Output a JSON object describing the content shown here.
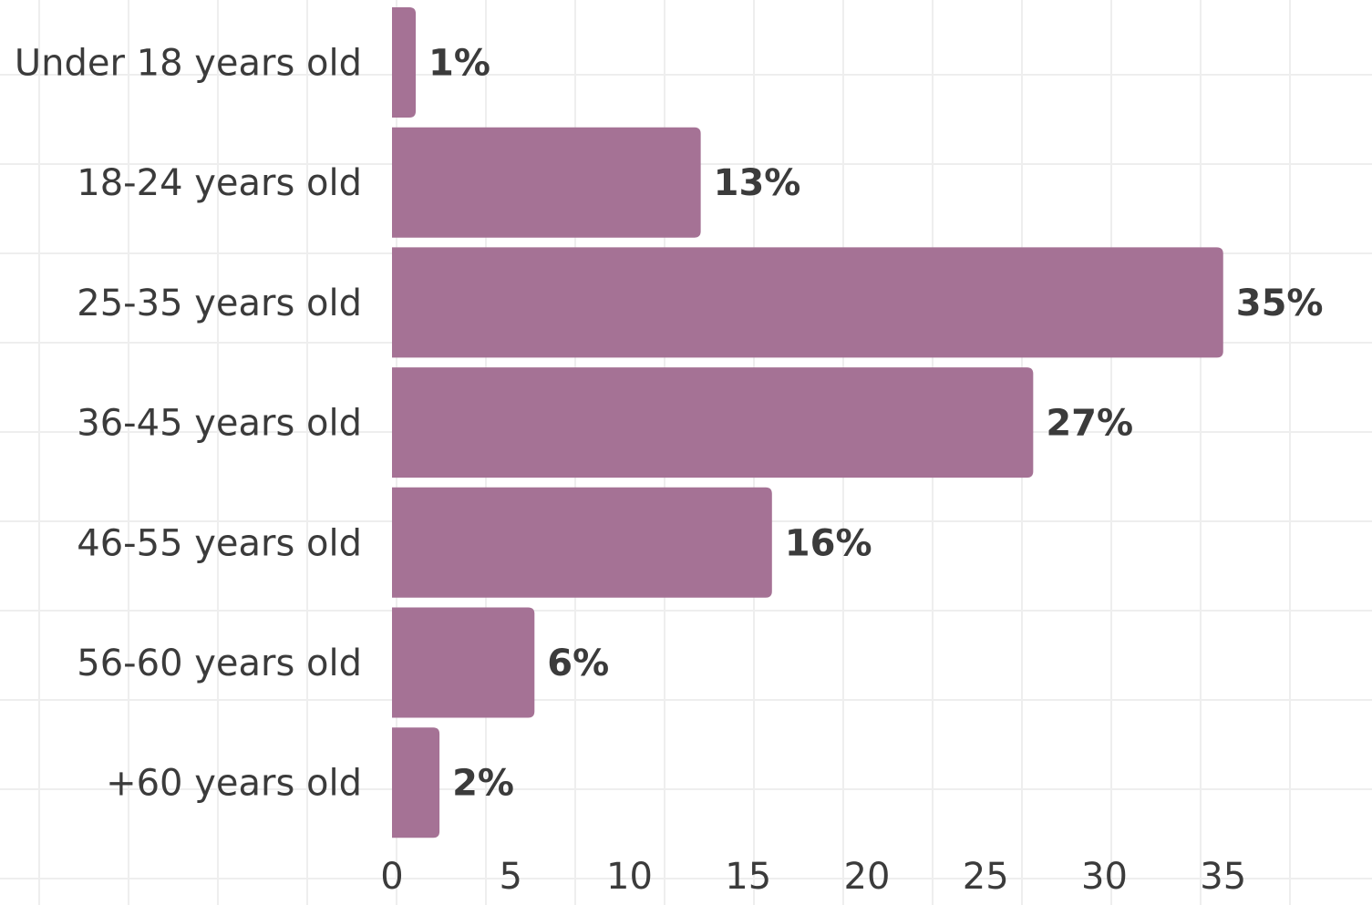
{
  "chart_data": {
    "type": "bar",
    "orientation": "horizontal",
    "categories": [
      "Under 18 years old",
      "18-24 years old",
      "25-35 years old",
      "36-45 years old",
      "46-55 years old",
      "56-60 years old",
      "+60 years old"
    ],
    "values": [
      1,
      13,
      35,
      27,
      16,
      6,
      2
    ],
    "data_labels": [
      "1%",
      "13%",
      "35%",
      "27%",
      "16%",
      "6%",
      "2%"
    ],
    "x_ticks": [
      "0",
      "5",
      "10",
      "15",
      "20",
      "25",
      "30",
      "35"
    ],
    "xlim": [
      0,
      35
    ],
    "grid": true,
    "bar_color": "#a57295",
    "text_color": "#3b3b3b",
    "grid_color": "#eeeeee"
  }
}
